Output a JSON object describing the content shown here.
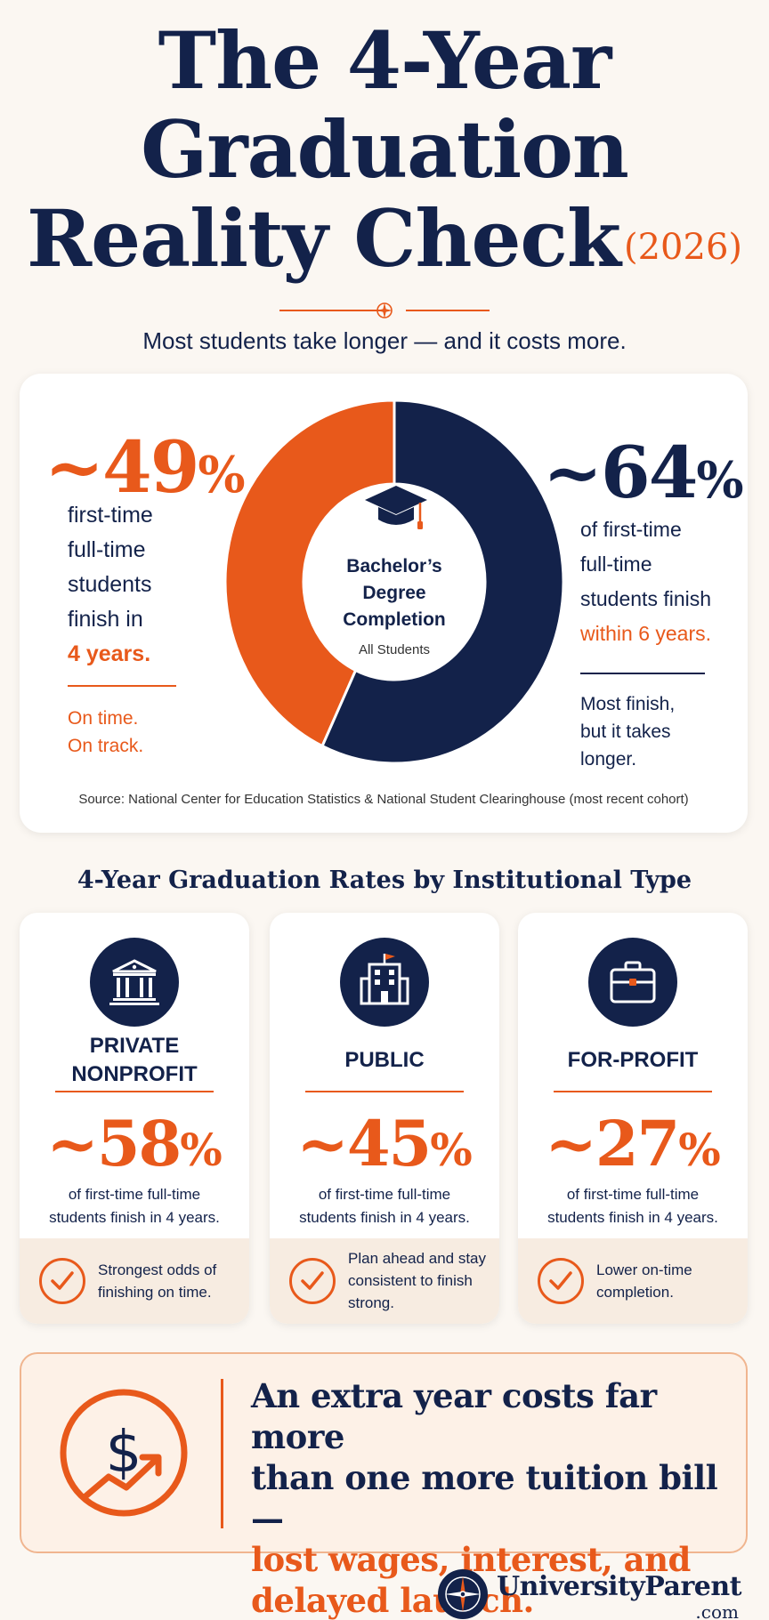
{
  "title": {
    "line1": "The 4-Year",
    "line2": "Graduation",
    "line3": "Reality Check",
    "year": "(2026)"
  },
  "subtitle": "Most students take longer — and it costs more.",
  "colors": {
    "navy": "#13224a",
    "orange": "#e8591b",
    "cream": "#fbf7f2"
  },
  "completion": {
    "left": {
      "stat_num": "~49",
      "stat_pct": "%",
      "line1": "first-time",
      "line2": "full-time",
      "line3": "students",
      "line4": "finish in",
      "highlight": "4 years.",
      "note1": "On time.",
      "note2": "On track."
    },
    "right": {
      "stat_num": "~64",
      "stat_pct": "%",
      "line1": "of first-time",
      "line2": "full-time",
      "line3": "students finish",
      "highlight": "within 6 years.",
      "note1": "Most finish,",
      "note2": "but it takes",
      "note3": "longer."
    },
    "donut": {
      "label1": "Bachelor’s",
      "label2": "Degree",
      "label3": "Completion",
      "sublabel": "All Students",
      "icon": "graduation-cap-icon"
    },
    "source": "Source: National Center for Education Statistics & National Student Clearinghouse (most recent cohort)"
  },
  "chart_data": {
    "type": "pie",
    "title": "Bachelor’s Degree Completion",
    "subtitle": "All Students",
    "categories": [
      "finish in 4 years",
      "more than 4 years"
    ],
    "values": [
      43,
      57
    ]
  },
  "section_title": "4-Year Graduation Rates by Institutional Type",
  "types": [
    {
      "name1": "PRIVATE",
      "name2": "NONPROFIT",
      "stat_num": "~58",
      "stat_pct": "%",
      "desc1": "of first-time full-time",
      "desc2": "students finish in 4 years.",
      "foot1": "Strongest odds of",
      "foot2": "finishing on time.",
      "foot3": "",
      "icon": "institution-columns-icon"
    },
    {
      "name1": "PUBLIC",
      "name2": "",
      "stat_num": "~45",
      "stat_pct": "%",
      "desc1": "of first-time full-time",
      "desc2": "students finish in 4 years.",
      "foot1": "Plan ahead and stay",
      "foot2": "consistent to finish",
      "foot3": "strong.",
      "icon": "building-flag-icon"
    },
    {
      "name1": "FOR-PROFIT",
      "name2": "",
      "stat_num": "~27",
      "stat_pct": "%",
      "desc1": "of first-time full-time",
      "desc2": "students finish in 4 years.",
      "foot1": "Lower on-time",
      "foot2": "completion.",
      "foot3": "",
      "icon": "briefcase-icon"
    }
  ],
  "cost": {
    "line1": "An extra year costs far more",
    "line2": "than one more tuition bill —",
    "line3": "lost wages, interest, and",
    "line4": "delayed launch.",
    "icon": "dollar-growth-icon"
  },
  "logo": {
    "name": "UniversityParent",
    "suffix": ".com",
    "icon": "compass-logo-icon"
  }
}
